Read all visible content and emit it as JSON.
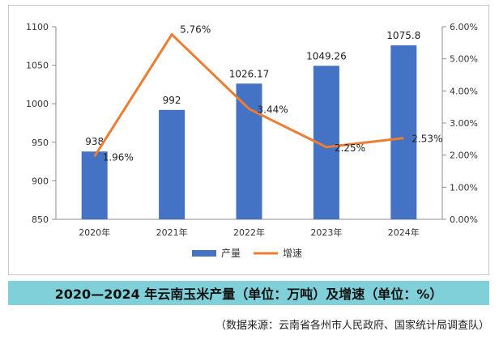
{
  "chart_data": {
    "type": "bar",
    "categories": [
      "2020年",
      "2021年",
      "2022年",
      "2023年",
      "2024年"
    ],
    "series": [
      {
        "name": "产量",
        "type": "bar",
        "axis": "left",
        "values": [
          938,
          992,
          1026.17,
          1049.26,
          1075.8
        ],
        "labels": [
          "938",
          "992",
          "1026.17",
          "1049.26",
          "1075.8"
        ],
        "color": "#4472c4"
      },
      {
        "name": "增速",
        "type": "line",
        "axis": "right",
        "values": [
          0.0196,
          0.0576,
          0.0344,
          0.0225,
          0.0253
        ],
        "labels": [
          "1.96%",
          "5.76%",
          "3.44%",
          "2.25%",
          "2.53%"
        ],
        "color": "#ed7d31"
      }
    ],
    "y_left": {
      "range": [
        850,
        1100
      ],
      "ticks": [
        "850",
        "900",
        "950",
        "1000",
        "1050",
        "1100"
      ]
    },
    "y_right": {
      "range": [
        0,
        0.06
      ],
      "ticks": [
        "0.00%",
        "1.00%",
        "2.00%",
        "3.00%",
        "4.00%",
        "5.00%",
        "6.00%"
      ]
    },
    "grid": false,
    "legend_position": "bottom"
  },
  "caption": "2020—2024 年云南玉米产量（单位：万吨）及增速（单位：%）",
  "source": "（数据来源：云南省各州市人民政府、国家统计局调查队）"
}
